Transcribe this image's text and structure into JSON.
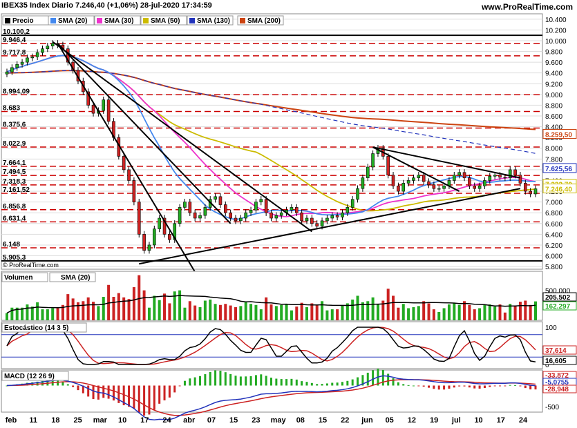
{
  "header": {
    "instrument_line": "IBEX35 Index Diario 7.246,40 (+1,06%) 28-jul-2020 17:34:59",
    "site": "www.ProRealTime.com",
    "credit": "© ProRealTime.com"
  },
  "legend": {
    "price": "Precio",
    "sma20": "SMA (20)",
    "sma30": "SMA (30)",
    "sma50": "SMA (50)",
    "sma130": "SMA (130)",
    "sma200": "SMA (200)"
  },
  "colors": {
    "up": "#22aa22",
    "down": "#cc2222",
    "sma20": "#4488ee",
    "sma30": "#ee33cc",
    "sma50": "#ccbb00",
    "sma130": "#2233bb",
    "sma200": "#cc4411",
    "support": "#cc0000"
  },
  "chart_data": [
    {
      "type": "candlestick",
      "name": "price",
      "ylim": [
        5750,
        10500
      ],
      "y_ticks": [
        "10.400",
        "10.200",
        "10.000",
        "9.800",
        "9.600",
        "9.400",
        "9.200",
        "9.000",
        "8.800",
        "8.600",
        "8.400",
        "8.200",
        "8.000",
        "7.800",
        "7.600",
        "7.400",
        "7.200",
        "7.000",
        "6.800",
        "6.600",
        "6.400",
        "6.200",
        "6.000",
        "5.800"
      ],
      "support_levels": [
        10100.2,
        9946.4,
        9717.8,
        8994.09,
        8683,
        8375.6,
        8022.9,
        7664.1,
        7494.5,
        7318.3,
        7161.52,
        6856.8,
        6631.4,
        6148,
        5905.3
      ],
      "support_labels": [
        "10.100,2",
        "9.946,4",
        "9.717,8",
        "8.994,09",
        "8.683",
        "8.375,6",
        "8.022,9",
        "7.664,1",
        "7.494,5",
        "7.318,3",
        "7.161,52",
        "6.856,8",
        "6.631,4",
        "6.148",
        "5.905,3"
      ],
      "badges": [
        {
          "label": "8.259,50",
          "value": 8259.5,
          "color": "#cc4411"
        },
        {
          "label": "7.625,56",
          "value": 7625.56,
          "color": "#2233bb"
        },
        {
          "label": "7.332,70",
          "value": 7332.7,
          "color": "#ccbb00"
        },
        {
          "label": "7.246,40",
          "value": 7246.4,
          "color": "#ccbb00"
        }
      ],
      "x_labels": [
        "feb",
        "11",
        "18",
        "25",
        "mar",
        "10",
        "17",
        "24",
        "abr",
        "07",
        "15",
        "23",
        "may",
        "08",
        "15",
        "22",
        "jun",
        "05",
        "12",
        "19",
        "jul",
        "10",
        "17",
        "24"
      ],
      "closes": [
        9420,
        9500,
        9560,
        9600,
        9680,
        9700,
        9780,
        9850,
        9900,
        9950,
        9920,
        9850,
        9600,
        9450,
        9250,
        9050,
        8800,
        8650,
        8700,
        8900,
        8500,
        8200,
        7850,
        7600,
        7400,
        7000,
        6400,
        6100,
        6200,
        6500,
        6700,
        6400,
        6300,
        6600,
        6900,
        7000,
        6800,
        6700,
        6750,
        6900,
        7050,
        7100,
        6950,
        6800,
        6700,
        6650,
        6700,
        6800,
        6850,
        7000,
        7050,
        6800,
        6700,
        6750,
        6800,
        6850,
        6900,
        6800,
        6650,
        6700,
        6600,
        6550,
        6650,
        6700,
        6750,
        6720,
        6800,
        6900,
        7050,
        7250,
        7450,
        7650,
        7900,
        8000,
        7850,
        7500,
        7300,
        7200,
        7350,
        7400,
        7450,
        7500,
        7380,
        7320,
        7250,
        7250,
        7300,
        7400,
        7500,
        7550,
        7450,
        7300,
        7250,
        7300,
        7400,
        7480,
        7500,
        7460,
        7450,
        7600,
        7500,
        7350,
        7200,
        7150,
        7246
      ]
    },
    {
      "type": "bar",
      "name": "volume",
      "legend": [
        "Volumen",
        "SMA (20)"
      ],
      "y_ticks": [
        "500.000"
      ],
      "badges": [
        {
          "label": "205.502",
          "color": "#000000"
        },
        {
          "label": "162.297",
          "color": "#22aa22"
        }
      ]
    },
    {
      "type": "line",
      "name": "stochastic",
      "legend": [
        "Estocástico (14 3 5)"
      ],
      "y_ticks": [
        "100",
        "0"
      ],
      "badges": [
        {
          "label": "37,614",
          "color": "#cc2222"
        },
        {
          "label": "16,605",
          "color": "#000000"
        }
      ]
    },
    {
      "type": "bar",
      "name": "macd",
      "legend": [
        "MACD (12 26 9)"
      ],
      "y_ticks": [
        "0",
        "-500"
      ],
      "badges": [
        {
          "label": "-33,872",
          "color": "#cc2222"
        },
        {
          "label": "-5,0755",
          "color": "#2233bb"
        },
        {
          "label": "-28,948",
          "color": "#cc2222"
        }
      ]
    }
  ]
}
